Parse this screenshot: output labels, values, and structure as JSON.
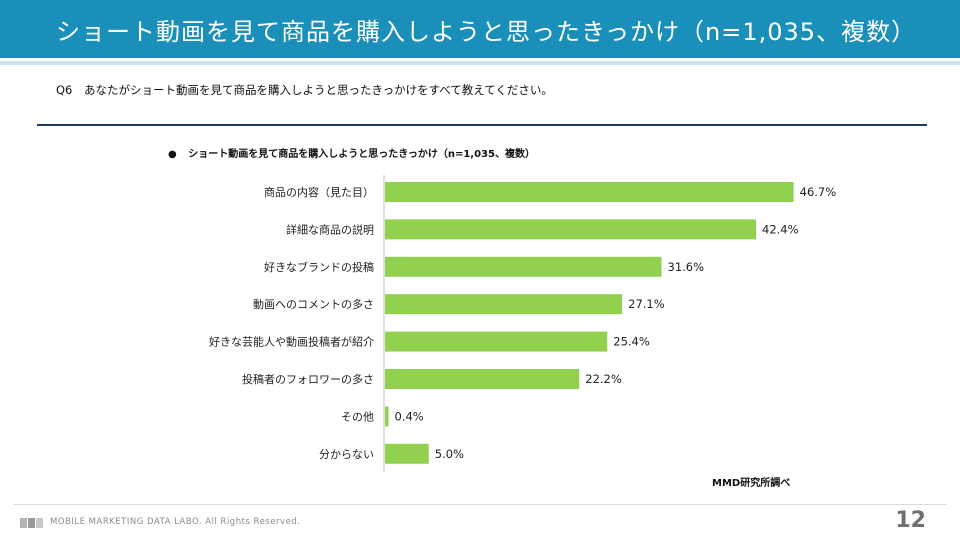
{
  "header": {
    "title": "ショート動画を見て商品を購入しようと思ったきっかけ（n=1,035、複数）"
  },
  "question": {
    "number": "Q6",
    "text": "あなたがショート動画を見て商品を購入しようと思ったきっかけをすべて教えてください。"
  },
  "chart_title": {
    "bullet": "●",
    "text": "ショート動画を見て商品を購入しようと思ったきっかけ（n=1,035、複数）"
  },
  "chart_data": {
    "type": "bar",
    "orientation": "horizontal",
    "title": "ショート動画を見て商品を購入しようと思ったきっかけ（n=1,035、複数）",
    "categories": [
      "商品の内容（見た目）",
      "詳細な商品の説明",
      "好きなブランドの投稿",
      "動画へのコメントの多さ",
      "好きな芸能人や動画投稿者が紹介",
      "投稿者のフォロワーの多さ",
      "その他",
      "分からない"
    ],
    "values": [
      46.7,
      42.4,
      31.6,
      27.1,
      25.4,
      22.2,
      0.4,
      5.0
    ],
    "value_labels": [
      "46.7%",
      "42.4%",
      "31.6%",
      "27.1%",
      "25.4%",
      "22.2%",
      "0.4%",
      "5.0%"
    ],
    "unit": "%",
    "xlim": [
      0,
      60
    ],
    "bar_color": "#92d050",
    "axis_color": "#bfbfbf",
    "grid": false,
    "legend": "none",
    "xlabel": "",
    "ylabel": ""
  },
  "source": "MMD研究所調べ",
  "footer": {
    "company": "MOBILE MARKETING DATA LABO.  All Rights Reserved.",
    "page_number": "12"
  },
  "colors": {
    "header_bg": "#1a8fb9",
    "header_underline": "#c9e2ee",
    "divider": "#1f3a5a"
  }
}
